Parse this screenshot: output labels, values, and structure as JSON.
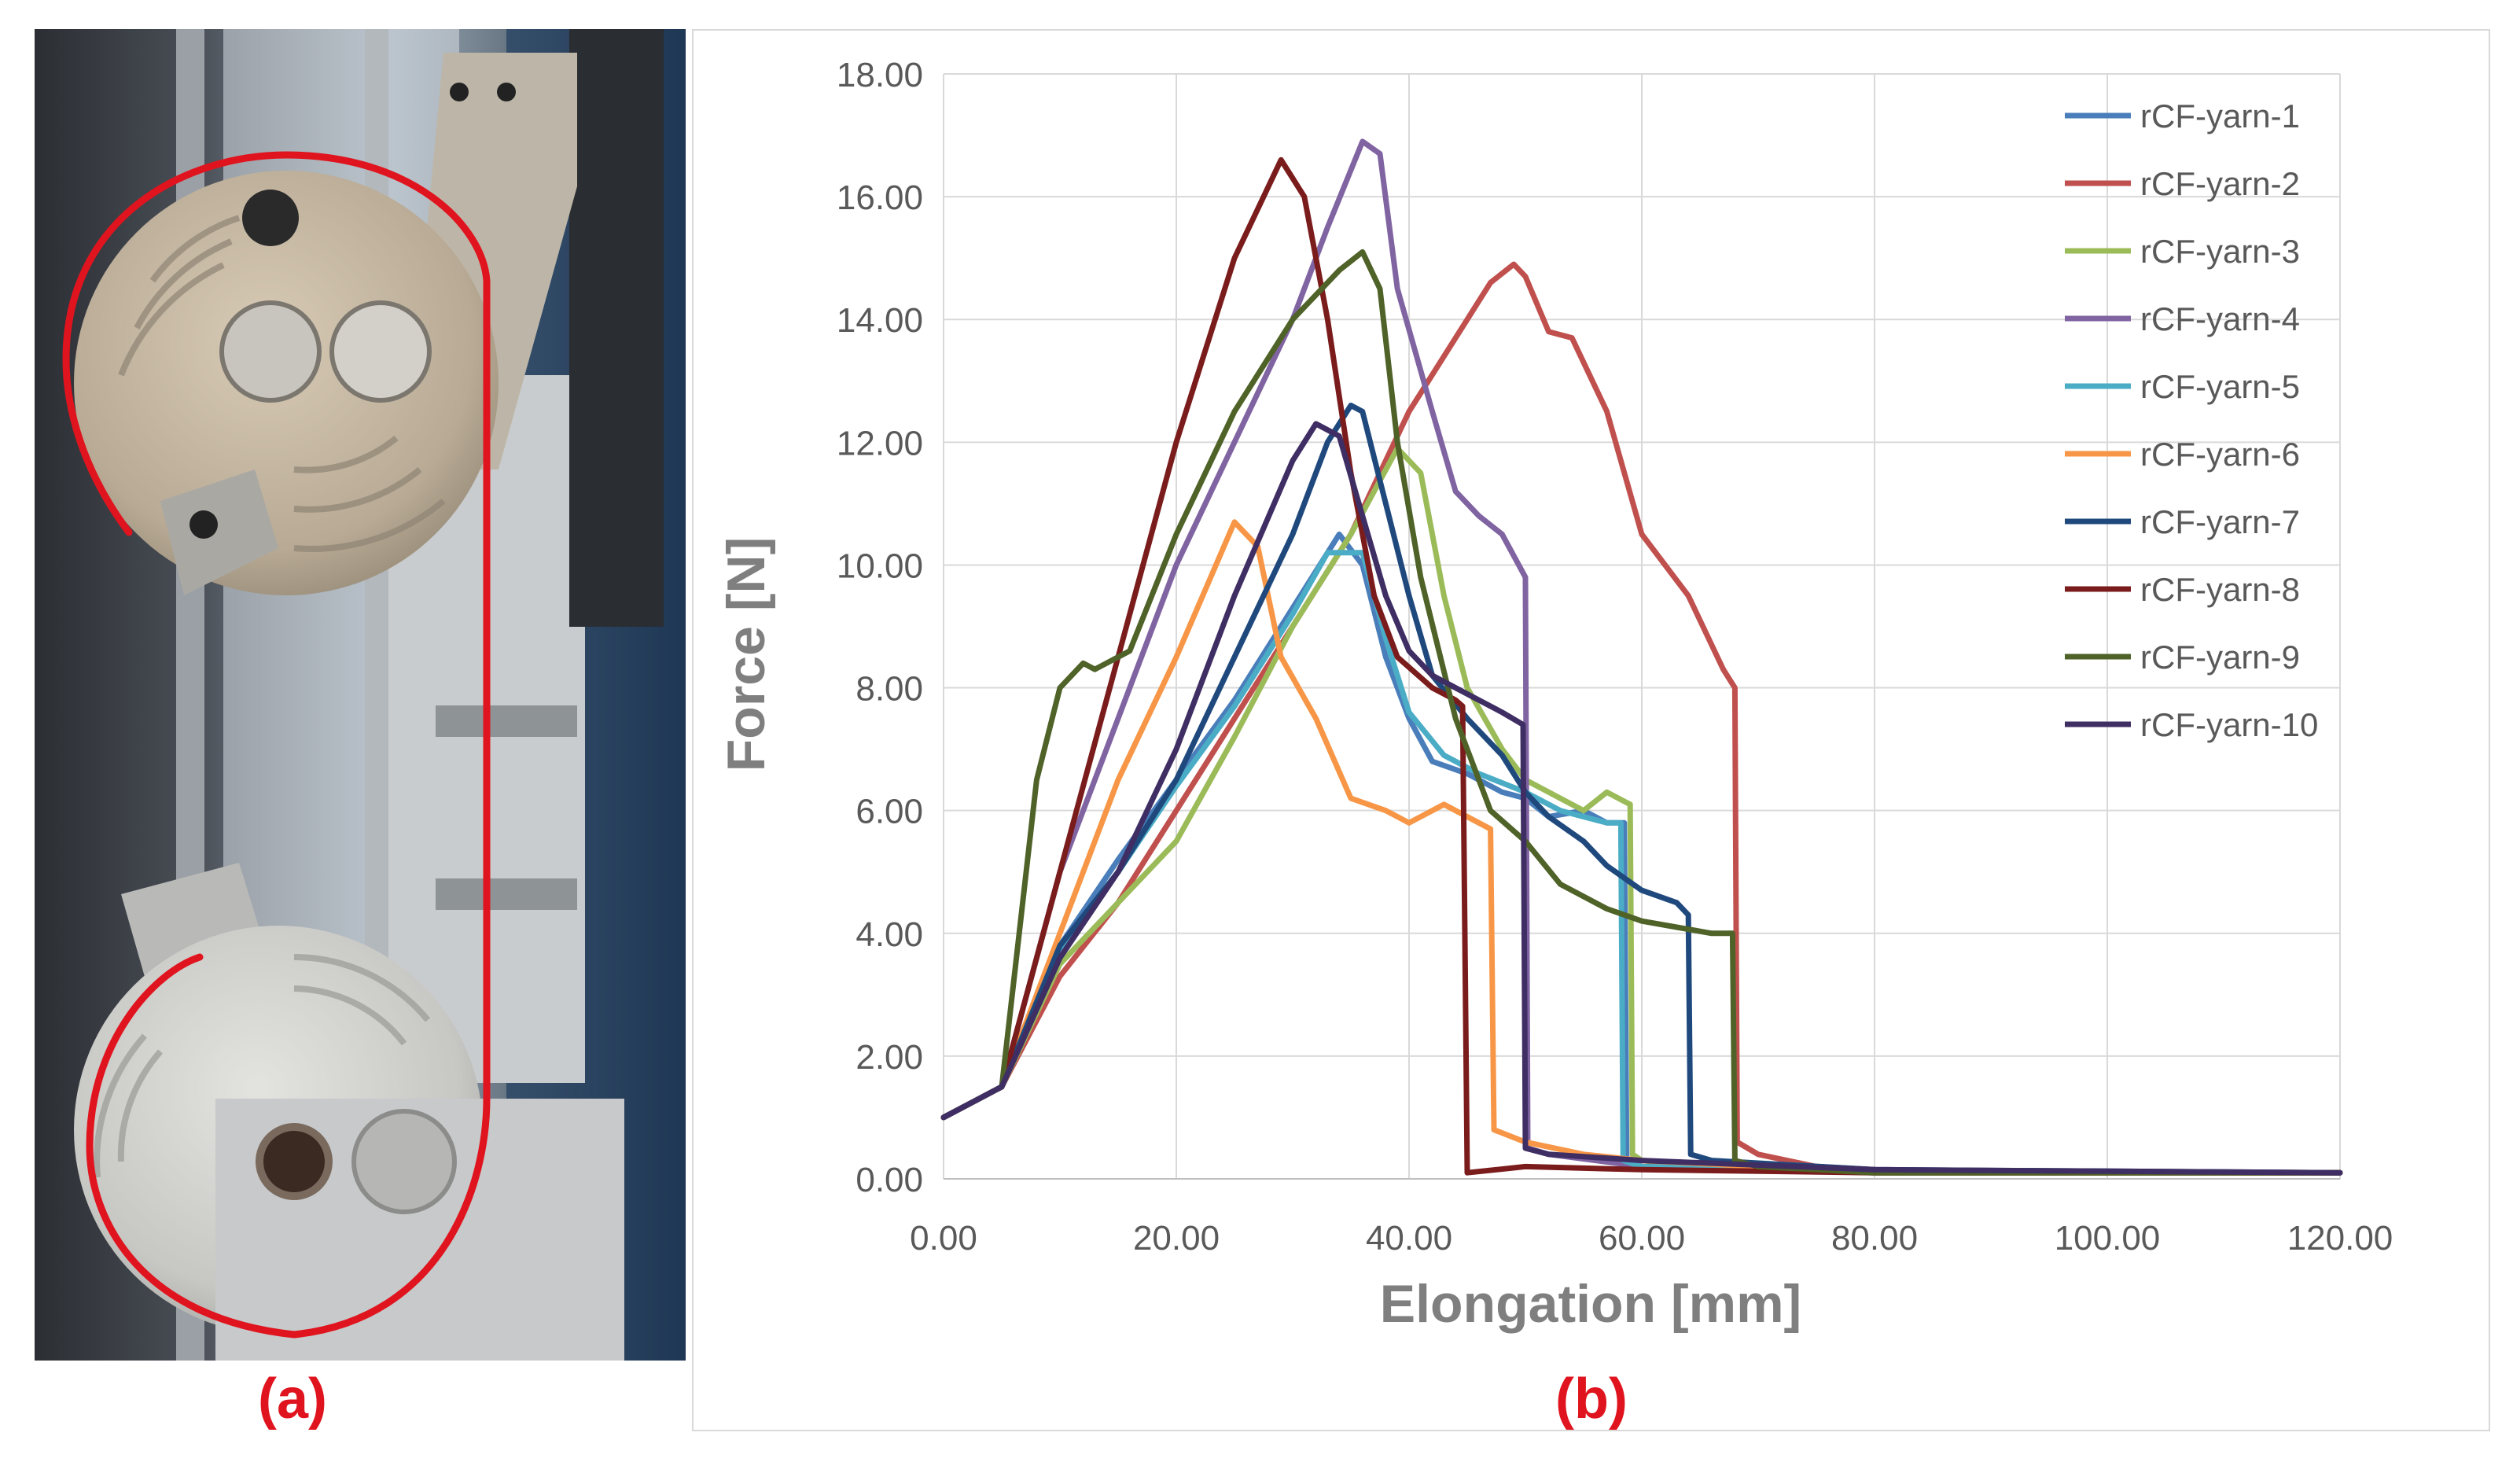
{
  "panel_labels": {
    "a": "(a)",
    "b": "(b)"
  },
  "colors": {
    "annotation_red": "#e0141e"
  },
  "photo": {
    "subject": "capstan-grip-tensile-test-fixture"
  },
  "chart_data": {
    "type": "line",
    "title": "",
    "xlabel": "Elongation [mm]",
    "ylabel": "Force [N]",
    "xlim": [
      0,
      120
    ],
    "ylim": [
      0,
      18
    ],
    "xticks": [
      "0.00",
      "20.00",
      "40.00",
      "60.00",
      "80.00",
      "100.00",
      "120.00"
    ],
    "yticks": [
      "0.00",
      "2.00",
      "4.00",
      "6.00",
      "8.00",
      "10.00",
      "12.00",
      "14.00",
      "16.00",
      "18.00"
    ],
    "grid": true,
    "legend_position": "top-right",
    "series": [
      {
        "name": "rCF-yarn-1",
        "color": "#4a7ebb",
        "x": [
          0,
          5,
          10,
          15,
          20,
          25,
          30,
          34,
          36,
          38,
          40,
          42,
          45,
          48,
          50,
          52,
          55,
          57,
          58.5,
          58.7,
          60,
          70,
          90,
          120
        ],
        "y": [
          1.0,
          1.5,
          3.8,
          5.2,
          6.5,
          7.8,
          9.3,
          10.5,
          10.0,
          8.5,
          7.5,
          6.8,
          6.6,
          6.3,
          6.2,
          5.9,
          6.0,
          5.8,
          5.8,
          0.3,
          0.2,
          0.15,
          0.1,
          0.1
        ]
      },
      {
        "name": "rCF-yarn-2",
        "color": "#c0504d",
        "x": [
          0,
          5,
          10,
          15,
          20,
          25,
          30,
          35,
          40,
          45,
          47,
          49,
          50,
          52,
          54,
          57,
          60,
          64,
          67,
          68,
          68.2,
          70,
          75,
          85,
          120
        ],
        "y": [
          1.0,
          1.5,
          3.3,
          4.5,
          6.0,
          7.5,
          9.0,
          10.5,
          12.5,
          14.0,
          14.6,
          14.9,
          14.7,
          13.8,
          13.7,
          12.5,
          10.5,
          9.5,
          8.3,
          8.0,
          0.6,
          0.4,
          0.2,
          0.1,
          0.1
        ]
      },
      {
        "name": "rCF-yarn-3",
        "color": "#9bbb59",
        "x": [
          0,
          5,
          10,
          15,
          20,
          25,
          30,
          35,
          39,
          41,
          43,
          45,
          48,
          50,
          53,
          55,
          57,
          59,
          59.2,
          60,
          65,
          80,
          120
        ],
        "y": [
          1.0,
          1.5,
          3.5,
          4.5,
          5.5,
          7.2,
          9.0,
          10.5,
          11.9,
          11.5,
          9.5,
          8.0,
          7.0,
          6.5,
          6.2,
          6.0,
          6.3,
          6.1,
          0.4,
          0.3,
          0.2,
          0.1,
          0.1
        ]
      },
      {
        "name": "rCF-yarn-4",
        "color": "#8064a2",
        "x": [
          0,
          5,
          10,
          15,
          20,
          25,
          30,
          33,
          36,
          37.5,
          39,
          42,
          44,
          46,
          48,
          50,
          50.2,
          52,
          60,
          80,
          120
        ],
        "y": [
          1.0,
          1.5,
          5.0,
          7.5,
          10.0,
          12.0,
          14.0,
          15.5,
          16.9,
          16.7,
          14.5,
          12.5,
          11.2,
          10.8,
          10.5,
          9.8,
          0.5,
          0.4,
          0.2,
          0.1,
          0.1
        ]
      },
      {
        "name": "rCF-yarn-5",
        "color": "#4bacc6",
        "x": [
          0,
          5,
          10,
          15,
          20,
          25,
          30,
          33,
          36,
          38,
          40,
          43,
          46,
          50,
          53,
          55,
          57,
          58.2,
          58.4,
          60,
          80,
          120
        ],
        "y": [
          1.0,
          1.5,
          3.7,
          5.0,
          6.4,
          7.7,
          9.2,
          10.2,
          10.2,
          8.8,
          7.6,
          6.9,
          6.6,
          6.3,
          6.0,
          5.9,
          5.8,
          5.8,
          0.3,
          0.2,
          0.1,
          0.1
        ]
      },
      {
        "name": "rCF-yarn-6",
        "color": "#f79646",
        "x": [
          0,
          5,
          10,
          15,
          20,
          25,
          27,
          29,
          32,
          35,
          38,
          40,
          43,
          45,
          47,
          47.3,
          50,
          55,
          60,
          80,
          120
        ],
        "y": [
          1.0,
          1.5,
          4.0,
          6.5,
          8.5,
          10.7,
          10.3,
          8.5,
          7.5,
          6.2,
          6.0,
          5.8,
          6.1,
          5.9,
          5.7,
          0.8,
          0.6,
          0.4,
          0.3,
          0.1,
          0.1
        ]
      },
      {
        "name": "rCF-yarn-7",
        "color": "#1f497d",
        "x": [
          0,
          5,
          10,
          15,
          20,
          25,
          30,
          33,
          35,
          36,
          38,
          40,
          42,
          45,
          48,
          50,
          52,
          55,
          57,
          60,
          63,
          64,
          64.2,
          66,
          80,
          120
        ],
        "y": [
          1.0,
          1.5,
          3.8,
          5.0,
          6.5,
          8.5,
          10.5,
          12.0,
          12.6,
          12.5,
          11.0,
          9.5,
          8.2,
          7.5,
          6.9,
          6.3,
          5.9,
          5.5,
          5.1,
          4.7,
          4.5,
          4.3,
          0.4,
          0.3,
          0.15,
          0.1
        ]
      },
      {
        "name": "rCF-yarn-8",
        "color": "#7b1c1c",
        "x": [
          0,
          5,
          10,
          15,
          20,
          25,
          29,
          31,
          33,
          35,
          37,
          39,
          42,
          44,
          44.6,
          45,
          50,
          60,
          80,
          120
        ],
        "y": [
          1.0,
          1.5,
          5.0,
          8.5,
          12.0,
          15.0,
          16.6,
          16.0,
          14.0,
          11.5,
          9.5,
          8.5,
          8.0,
          7.8,
          7.7,
          0.1,
          0.2,
          0.15,
          0.1,
          0.1
        ]
      },
      {
        "name": "rCF-yarn-9",
        "color": "#4f6228",
        "x": [
          0,
          5,
          8,
          10,
          12,
          13,
          14,
          15,
          16,
          20,
          25,
          30,
          34,
          36,
          37.5,
          39,
          41,
          44,
          47,
          50,
          53,
          57,
          60,
          63,
          66,
          67.8,
          68,
          70,
          80,
          120
        ],
        "y": [
          1.0,
          1.5,
          6.5,
          8.0,
          8.4,
          8.3,
          8.4,
          8.5,
          8.6,
          10.5,
          12.5,
          14.0,
          14.8,
          15.1,
          14.5,
          12.0,
          9.8,
          7.5,
          6.0,
          5.5,
          4.8,
          4.4,
          4.2,
          4.1,
          4.0,
          4.0,
          0.3,
          0.2,
          0.1,
          0.1
        ]
      },
      {
        "name": "rCF-yarn-10",
        "color": "#3f2e63",
        "x": [
          0,
          5,
          10,
          15,
          20,
          25,
          30,
          32,
          34,
          36,
          38,
          40,
          42,
          44,
          46,
          48,
          49.8,
          50,
          52,
          60,
          80,
          120
        ],
        "y": [
          1.0,
          1.5,
          3.6,
          5.0,
          7.0,
          9.5,
          11.7,
          12.3,
          12.1,
          10.8,
          9.5,
          8.6,
          8.2,
          8.0,
          7.8,
          7.6,
          7.4,
          0.5,
          0.4,
          0.3,
          0.15,
          0.1
        ]
      }
    ]
  }
}
